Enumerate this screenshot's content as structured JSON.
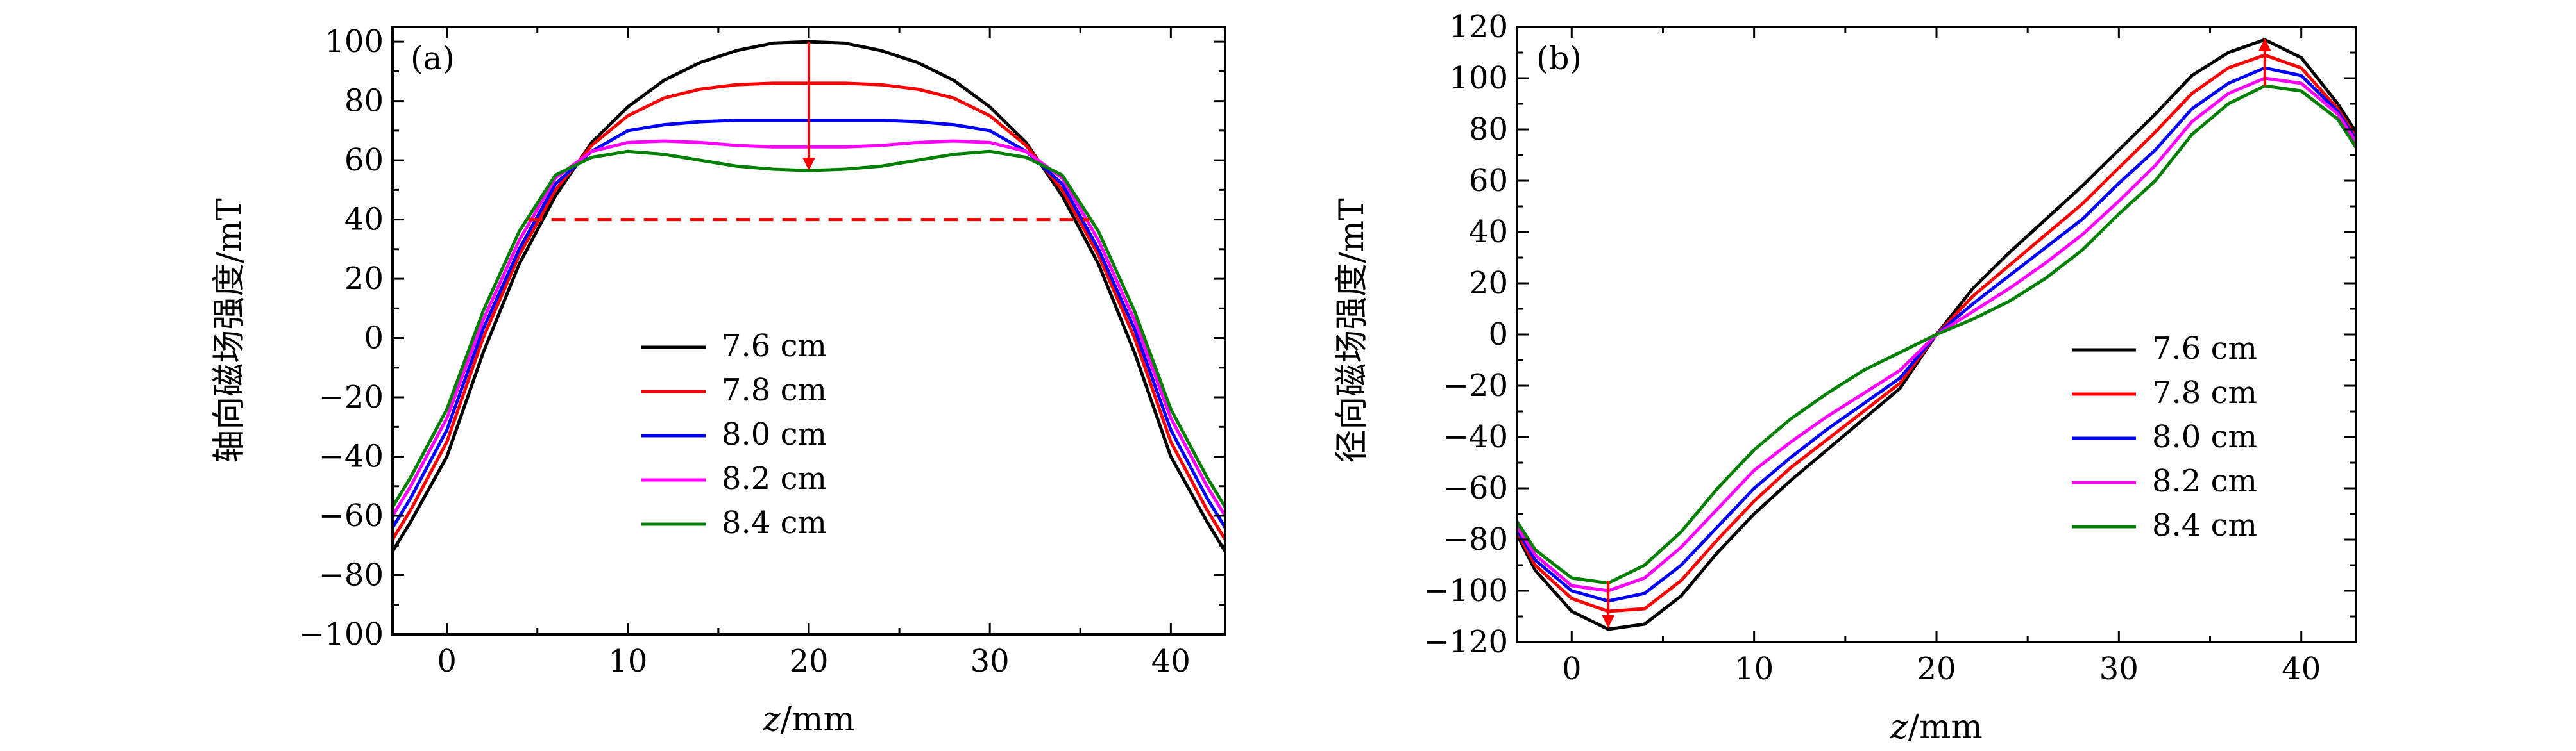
{
  "chart_data": [
    {
      "panel": "(a)",
      "type": "line",
      "xlabel_var": "z",
      "xlabel_unit": "/mm",
      "ylabel": "轴向磁场强度/mT",
      "xlim": [
        -3,
        43
      ],
      "ylim": [
        -100,
        105
      ],
      "xticks": [
        0,
        10,
        20,
        30,
        40
      ],
      "yticks": [
        -100,
        -80,
        -60,
        -40,
        -20,
        0,
        20,
        40,
        60,
        80,
        100
      ],
      "x": [
        -3,
        -2,
        0,
        2,
        4,
        6,
        8,
        10,
        12,
        14,
        16,
        18,
        20,
        22,
        24,
        26,
        28,
        30,
        32,
        34,
        36,
        38,
        40,
        42,
        43
      ],
      "series": [
        {
          "name": "7.6 cm",
          "color": "#000000",
          "values": [
            -72,
            -62,
            -40,
            -5,
            25,
            48,
            66,
            78,
            87,
            93,
            97,
            99.5,
            100,
            99.5,
            97,
            93,
            87,
            78,
            66,
            48,
            25,
            -5,
            -40,
            -62,
            -72
          ]
        },
        {
          "name": "7.8 cm",
          "color": "#ff0000",
          "values": [
            -68,
            -58,
            -35,
            0,
            28,
            50,
            65,
            75,
            81,
            84,
            85.5,
            86,
            86,
            86,
            85.5,
            84,
            81,
            75,
            65,
            50,
            28,
            0,
            -35,
            -58,
            -68
          ]
        },
        {
          "name": "8.0 cm",
          "color": "#0000ff",
          "values": [
            -64,
            -54,
            -31,
            3,
            30,
            52,
            63,
            70,
            72,
            73,
            73.5,
            73.5,
            73.5,
            73.5,
            73.5,
            73,
            72,
            70,
            63,
            52,
            30,
            3,
            -31,
            -54,
            -64
          ]
        },
        {
          "name": "8.2 cm",
          "color": "#ff00ff",
          "values": [
            -60,
            -50,
            -27,
            6,
            33,
            54,
            63,
            66,
            66.5,
            66,
            65,
            64.5,
            64.5,
            64.5,
            65,
            66,
            66.5,
            66,
            63,
            54,
            33,
            6,
            -27,
            -50,
            -60
          ]
        },
        {
          "name": "8.4 cm",
          "color": "#008000",
          "values": [
            -57,
            -47,
            -24,
            9,
            36,
            55,
            61,
            63,
            62,
            60,
            58,
            57,
            56.5,
            57,
            58,
            60,
            62,
            63,
            61,
            55,
            36,
            9,
            -24,
            -47,
            -57
          ]
        }
      ],
      "annotations": {
        "dashed_line": {
          "y": 40,
          "x_from": 4.5,
          "x_to": 35.5,
          "color": "#ff0000"
        },
        "arrow": {
          "x": 20,
          "y_from": 100,
          "y_to": 57,
          "color": "#ff0000"
        }
      },
      "legend": [
        "7.6 cm",
        "7.8 cm",
        "8.0 cm",
        "8.2 cm",
        "8.4 cm"
      ]
    },
    {
      "panel": "(b)",
      "type": "line",
      "xlabel_var": "z",
      "xlabel_unit": "/mm",
      "ylabel": "径向磁场强度/mT",
      "xlim": [
        -3,
        43
      ],
      "ylim": [
        -120,
        120
      ],
      "xticks": [
        0,
        10,
        20,
        30,
        40
      ],
      "yticks": [
        -120,
        -100,
        -80,
        -60,
        -40,
        -20,
        0,
        20,
        40,
        60,
        80,
        100,
        120
      ],
      "x": [
        -3,
        -2,
        0,
        2,
        4,
        6,
        8,
        10,
        12,
        14,
        16,
        18,
        20,
        22,
        24,
        26,
        28,
        30,
        32,
        34,
        36,
        38,
        40,
        42,
        43
      ],
      "series": [
        {
          "name": "7.6 cm",
          "color": "#000000",
          "values": [
            -78,
            -92,
            -108,
            -115,
            -113,
            -102,
            -85,
            -70,
            -57,
            -45,
            -33,
            -21,
            0,
            18,
            32,
            45,
            58,
            72,
            86,
            101,
            110,
            115,
            108,
            90,
            79
          ]
        },
        {
          "name": "7.8 cm",
          "color": "#ff0000",
          "values": [
            -77,
            -90,
            -103,
            -108,
            -107,
            -96,
            -80,
            -65,
            -52,
            -41,
            -30,
            -19,
            0,
            15,
            27,
            39,
            51,
            65,
            79,
            94,
            104,
            109,
            104,
            88,
            77
          ]
        },
        {
          "name": "8.0 cm",
          "color": "#0000ff",
          "values": [
            -76,
            -88,
            -100,
            -104,
            -101,
            -90,
            -75,
            -60,
            -48,
            -37,
            -27,
            -17,
            0,
            12,
            23,
            34,
            45,
            59,
            72,
            88,
            98,
            104,
            101,
            87,
            76
          ]
        },
        {
          "name": "8.2 cm",
          "color": "#ff00ff",
          "values": [
            -75,
            -86,
            -98,
            -100,
            -95,
            -83,
            -68,
            -53,
            -42,
            -32,
            -23,
            -14,
            0,
            9,
            18,
            28,
            39,
            52,
            66,
            83,
            94,
            100,
            98,
            86,
            75
          ]
        },
        {
          "name": "8.4 cm",
          "color": "#008000",
          "values": [
            -73,
            -84,
            -95,
            -97,
            -90,
            -77,
            -60,
            -45,
            -33,
            -23,
            -14,
            -7,
            0,
            6,
            13,
            22,
            33,
            47,
            60,
            78,
            90,
            97,
            95,
            84,
            73
          ]
        }
      ],
      "annotations": {
        "arrow_down": {
          "x": 2,
          "y_from": -96,
          "y_to": -114,
          "color": "#ff0000"
        },
        "arrow_up": {
          "x": 38,
          "y_from": 97,
          "y_to": 115,
          "color": "#ff0000"
        }
      },
      "legend": [
        "7.6 cm",
        "7.8 cm",
        "8.0 cm",
        "8.2 cm",
        "8.4 cm"
      ]
    }
  ]
}
